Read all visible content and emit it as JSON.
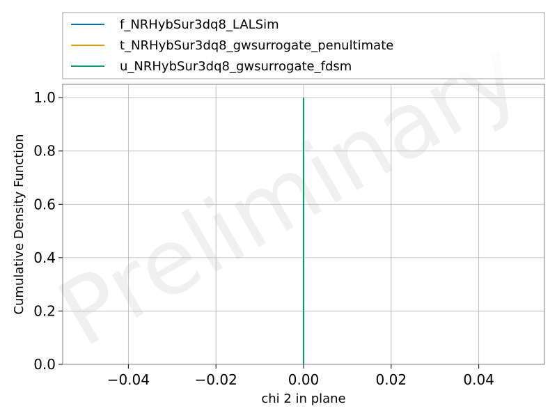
{
  "chart_data": {
    "type": "line",
    "title": "",
    "xlabel": "chi 2 in plane",
    "ylabel": "Cumulative Density Function",
    "xlim": [
      -0.055,
      0.055
    ],
    "ylim": [
      0.0,
      1.05
    ],
    "xticks": [
      -0.04,
      -0.02,
      0.0,
      0.02,
      0.04
    ],
    "xtick_labels": [
      "−0.04",
      "−0.02",
      "0.00",
      "0.02",
      "0.04"
    ],
    "yticks": [
      0.0,
      0.2,
      0.4,
      0.6,
      0.8,
      1.0
    ],
    "ytick_labels": [
      "0.0",
      "0.2",
      "0.4",
      "0.6",
      "0.8",
      "1.0"
    ],
    "grid": true,
    "legend_position": "top, outside plot",
    "watermark": "Preliminary",
    "series": [
      {
        "name": "f_NRHybSur3dq8_LALSim",
        "color": "#0072b2",
        "x": [
          0.0,
          0.0
        ],
        "y": [
          0.0,
          1.0
        ]
      },
      {
        "name": "t_NRHybSur3dq8_gwsurrogate_penultimate",
        "color": "#e69f00",
        "x": [
          0.0,
          0.0
        ],
        "y": [
          0.0,
          1.0
        ]
      },
      {
        "name": "u_NRHybSur3dq8_gwsurrogate_fdsm",
        "color": "#009e73",
        "x": [
          0.0,
          0.0
        ],
        "y": [
          0.0,
          1.0
        ]
      }
    ]
  }
}
